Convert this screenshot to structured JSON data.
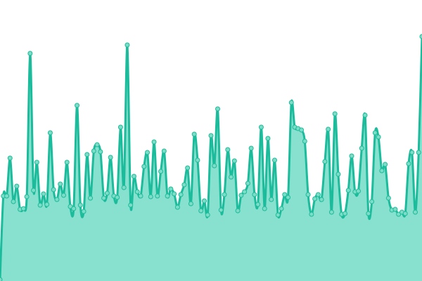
{
  "chart_data": {
    "type": "area",
    "title": "",
    "xlabel": "",
    "ylabel": "",
    "grid": false,
    "axes_visible": false,
    "ylim": [
      0,
      400
    ],
    "line_color": "#1abc9c",
    "fill_color": "#88e0cf",
    "marker_color": "#7ddcc6",
    "values": [
      2,
      121,
      121,
      175,
      113,
      135,
      102,
      103,
      120,
      324,
      129,
      169,
      108,
      124,
      109,
      211,
      130,
      116,
      138,
      122,
      169,
      106,
      103,
      250,
      108,
      99,
      180,
      118,
      185,
      194,
      184,
      118,
      125,
      176,
      121,
      119,
      219,
      133,
      336,
      108,
      149,
      127,
      121,
      163,
      183,
      120,
      198,
      121,
      156,
      185,
      121,
      131,
      124,
      105,
      123,
      137,
      161,
      110,
      209,
      172,
      100,
      114,
      94,
      207,
      164,
      245,
      101,
      123,
      187,
      148,
      171,
      100,
      122,
      127,
      139,
      189,
      123,
      109,
      219,
      103,
      203,
      116,
      172,
      94,
      103,
      123,
      119,
      254,
      219,
      217,
      215,
      199,
      123,
      95,
      117,
      123,
      116,
      170,
      216,
      98,
      238,
      152,
      95,
      96,
      129,
      178,
      127,
      128,
      189,
      236,
      96,
      113,
      211,
      205,
      157,
      166,
      118,
      101,
      102,
      95,
      98,
      96,
      167,
      183,
      98,
      183,
      348
    ]
  }
}
